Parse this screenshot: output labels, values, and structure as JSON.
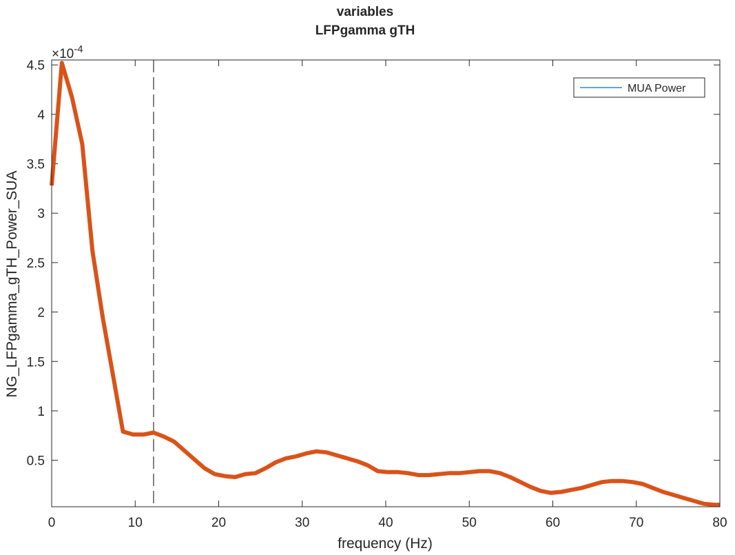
{
  "chart_data": {
    "type": "line",
    "title_lines": [
      "variables",
      "LFPgamma gTH"
    ],
    "xlabel": "frequency (Hz)",
    "ylabel": "NG_LFPgamma_gTH_Power_SUA",
    "y_exponent_base": "×10",
    "y_exponent_power": "-4",
    "xlim": [
      0,
      80
    ],
    "ylim": [
      0.03,
      4.55
    ],
    "x_ticks": [
      0,
      10,
      20,
      30,
      40,
      50,
      60,
      70,
      80
    ],
    "x_tick_labels": [
      "0",
      "10",
      "20",
      "30",
      "40",
      "50",
      "60",
      "70",
      "80"
    ],
    "y_ticks": [
      0.5,
      1,
      1.5,
      2,
      2.5,
      3,
      3.5,
      4,
      4.5
    ],
    "y_tick_labels": [
      "0.5",
      "1",
      "1.5",
      "2",
      "2.5",
      "3",
      "3.5",
      "4",
      "4.5"
    ],
    "vline_x": 12.2,
    "legend": {
      "placement": "top-right",
      "entries": [
        {
          "label": "MUA Power",
          "color": "#0072BD"
        }
      ]
    },
    "series": [
      {
        "color": "#D95319",
        "x": [
          0,
          1.22,
          2.44,
          3.66,
          4.88,
          6.1,
          7.32,
          8.54,
          9.76,
          10.98,
          12.2,
          13.42,
          14.64,
          15.86,
          17.08,
          18.3,
          19.52,
          20.74,
          21.96,
          23.18,
          24.4,
          25.62,
          26.84,
          28.06,
          29.28,
          30.5,
          31.72,
          32.94,
          34.16,
          35.38,
          36.6,
          37.82,
          39.04,
          40.26,
          41.48,
          42.7,
          43.92,
          45.14,
          46.36,
          47.58,
          48.8,
          50.02,
          51.24,
          52.46,
          53.68,
          54.9,
          56.12,
          57.34,
          58.56,
          59.78,
          61.0,
          62.22,
          63.44,
          64.66,
          65.88,
          67.1,
          68.32,
          69.54,
          70.76,
          71.98,
          73.2,
          74.42,
          75.64,
          76.86,
          78.08,
          79.3,
          80.0
        ],
        "y": [
          3.28,
          4.52,
          4.17,
          3.7,
          2.62,
          1.95,
          1.37,
          0.79,
          0.76,
          0.76,
          0.78,
          0.74,
          0.69,
          0.6,
          0.51,
          0.42,
          0.36,
          0.34,
          0.33,
          0.36,
          0.37,
          0.42,
          0.48,
          0.52,
          0.54,
          0.57,
          0.59,
          0.58,
          0.55,
          0.52,
          0.49,
          0.45,
          0.39,
          0.38,
          0.38,
          0.37,
          0.35,
          0.35,
          0.36,
          0.37,
          0.37,
          0.38,
          0.39,
          0.39,
          0.37,
          0.33,
          0.28,
          0.23,
          0.19,
          0.17,
          0.18,
          0.2,
          0.22,
          0.25,
          0.28,
          0.29,
          0.29,
          0.28,
          0.26,
          0.22,
          0.18,
          0.15,
          0.12,
          0.09,
          0.06,
          0.05,
          0.05
        ]
      }
    ]
  }
}
